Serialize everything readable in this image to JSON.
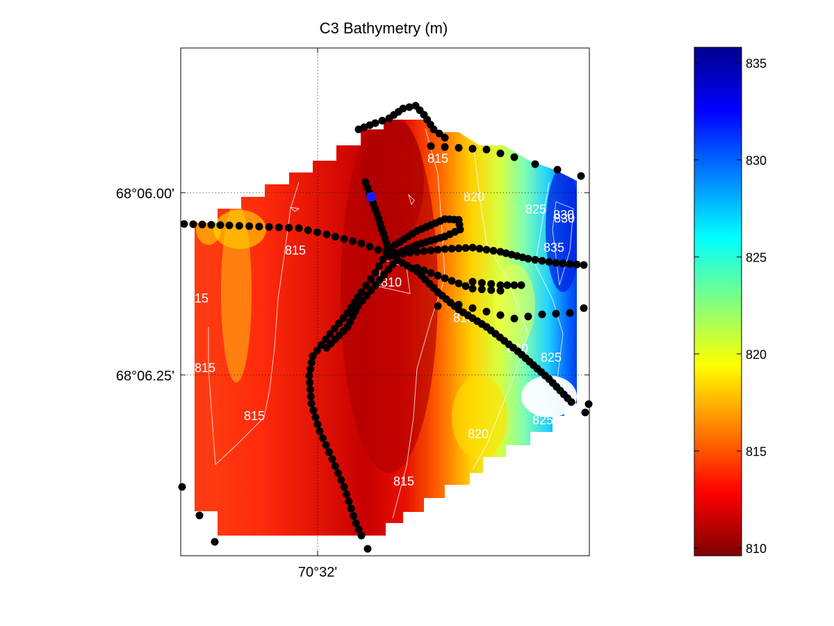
{
  "chart_data": {
    "type": "heatmap",
    "title": "C3 Bathymetry (m)",
    "xlabel": "",
    "ylabel": "",
    "x_ticks": [
      {
        "label": "70°32'"
      }
    ],
    "y_ticks": [
      {
        "label": "68°06.00'"
      },
      {
        "label": "68°06.25'"
      }
    ],
    "grid": "dotted at labeled ticks",
    "colormap": "jet",
    "colormap_stops": [
      "#7f0000",
      "#ff0000",
      "#ff8000",
      "#ffff00",
      "#80ff80",
      "#00ffff",
      "#0080ff",
      "#0000ff",
      "#00008f"
    ],
    "colorbar": {
      "range": [
        809.6,
        835.8
      ],
      "ticks": [
        810,
        815,
        820,
        825,
        830,
        835
      ],
      "placement": "right"
    },
    "contour_labels": [
      "815",
      "815",
      "815",
      "815",
      "815",
      "815",
      "815",
      "820",
      "820",
      "820",
      "825",
      "825",
      "825",
      "830",
      "830",
      "835",
      "810",
      "815"
    ],
    "track_color": "#000000",
    "marker_color": "#1a1aff"
  }
}
